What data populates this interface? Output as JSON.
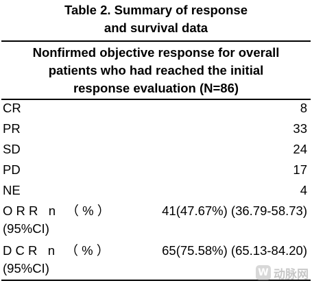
{
  "table": {
    "title_line1": "Table 2. Summary of response",
    "title_line2": "and survival data",
    "subhead_line1": "Nonfirmed objective response for overall",
    "subhead_line2": "patients who had reached the initial",
    "subhead_line3": "response evaluation (N=86)",
    "rows": [
      {
        "label": "CR",
        "value": "8"
      },
      {
        "label": "PR",
        "value": "33"
      },
      {
        "label": "SD",
        "value": "24"
      },
      {
        "label": "PD",
        "value": "17"
      },
      {
        "label": "NE",
        "value": "4"
      },
      {
        "label_line1": "O R R   n   （ % ）",
        "label_line2": "(95%CI)",
        "value": "41(47.67%) (36.79-58.73)"
      },
      {
        "label_line1": "D C R   n   （ % ）",
        "label_line2": "(95%CI)",
        "value": "65(75.58%) (65.13-84.20)"
      }
    ]
  },
  "watermark": {
    "logo_glyph": "W",
    "text": "动脉网"
  }
}
